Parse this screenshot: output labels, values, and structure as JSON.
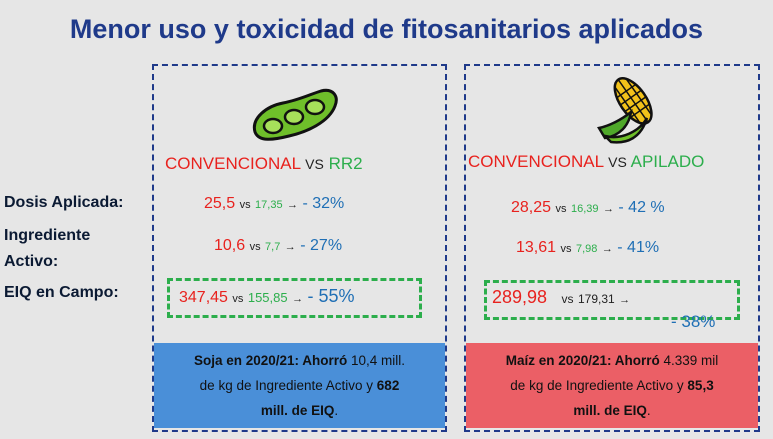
{
  "title": "Menor uso y toxicidad de fitosanitarios aplicados",
  "labels": {
    "dosis": "Dosis Aplicada:",
    "ingrediente_line1": "Ingrediente",
    "ingrediente_line2": "Activo:",
    "eiq": "EIQ en Campo:"
  },
  "left": {
    "icon": "soybean-pod-icon",
    "heading": {
      "conv": "CONVENCIONAL",
      "vs": "VS",
      "alt": "RR2"
    },
    "dosis": {
      "a": "25,5",
      "vs": "vs",
      "b": "17,35",
      "arrow": "→",
      "pct": "- 32%"
    },
    "ingrediente": {
      "a": "10,6",
      "vs": "vs",
      "b": "7,7",
      "arrow": "→",
      "pct": "- 27%"
    },
    "eiq": {
      "a": "347,45",
      "vs": "vs",
      "b": "155,85",
      "arrow": "→",
      "pct": "- 55%"
    },
    "footer": {
      "p1": "Soja en 2020/21: Ahorró",
      "p2": " 10,4 mill.",
      "p3": "de kg de Ingrediente Activo y ",
      "p4": "682",
      "p5": "mill. de EIQ",
      "p6": "."
    }
  },
  "right": {
    "icon": "corn-cob-icon",
    "heading": {
      "conv": "CONVENCIONAL",
      "vs": "VS",
      "alt": "APILADO"
    },
    "dosis": {
      "a": "28,25",
      "vs": "vs",
      "b": "16,39",
      "arrow": "→",
      "pct": "- 42 %"
    },
    "ingrediente": {
      "a": "13,61",
      "vs": "vs",
      "b": "7,98",
      "arrow": "→",
      "pct": "- 41%"
    },
    "eiq": {
      "a": "289,98",
      "vs": "vs",
      "b": "179,31",
      "arrow": "→",
      "pct": "- 38%"
    },
    "footer": {
      "p1": "Maíz en 2020/21: Ahorró",
      "p2": " 4.339 mil",
      "p3": "de kg de Ingrediente Activo y ",
      "p4": "85,3",
      "p5": "mill. de EIQ",
      "p6": "."
    }
  },
  "colors": {
    "title": "#1f3a8a",
    "conventional": "#e8221e",
    "alternative": "#2cae4c",
    "percent": "#1f6fb5",
    "footer_left": "#4a8fd8",
    "footer_right": "#eb5f66"
  }
}
